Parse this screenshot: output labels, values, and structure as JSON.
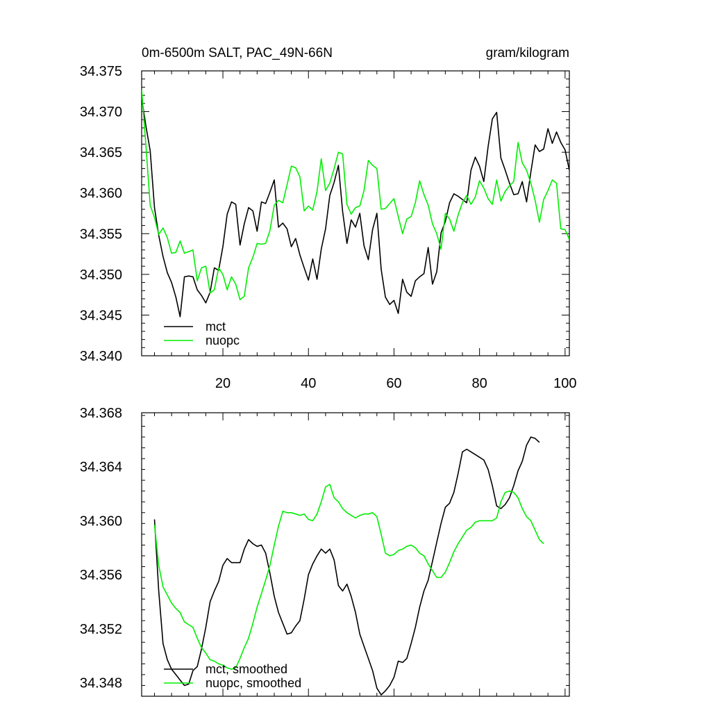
{
  "figure": {
    "title_left": "0m-6500m SALT, PAC_49N-66N",
    "title_right": "gram/kilogram"
  },
  "colors": {
    "mct": "#000000",
    "nuopc": "#00ee00",
    "axis": "#000000"
  },
  "chart_data": [
    {
      "type": "line",
      "panel": "raw",
      "xlim": [
        1,
        101
      ],
      "ylim": [
        34.34,
        34.375
      ],
      "xticks": [
        20,
        40,
        60,
        80,
        100
      ],
      "yticks": [
        34.34,
        34.345,
        34.35,
        34.355,
        34.36,
        34.365,
        34.37,
        34.375
      ],
      "ytick_labels": [
        "34.340",
        "34.345",
        "34.350",
        "34.355",
        "34.360",
        "34.365",
        "34.370",
        "34.375"
      ],
      "xtick_labels": [
        "20",
        "40",
        "60",
        "80",
        "100"
      ],
      "legend": [
        "mct",
        "nuopc"
      ],
      "series": [
        {
          "name": "mct",
          "color": "#000000",
          "x_start": 1,
          "x_step": 1,
          "values": [
            34.3717,
            34.3682,
            34.3652,
            34.3582,
            34.3548,
            34.3522,
            34.3502,
            34.349,
            34.3472,
            34.3448,
            34.3497,
            34.3498,
            34.3497,
            34.3481,
            34.3474,
            34.3465,
            34.3478,
            34.3508,
            34.3505,
            34.3534,
            34.3574,
            34.3589,
            34.3586,
            34.3536,
            34.3562,
            34.3582,
            34.3578,
            34.3553,
            34.3589,
            34.3587,
            34.3601,
            34.3616,
            34.3558,
            34.3563,
            34.3556,
            34.3534,
            34.3544,
            34.3524,
            34.3508,
            34.3493,
            34.3519,
            34.3494,
            34.3531,
            34.3556,
            34.3597,
            34.3613,
            34.3634,
            34.3577,
            34.3538,
            34.3567,
            34.3558,
            34.3575,
            34.3535,
            34.3518,
            34.3555,
            34.3575,
            34.3506,
            34.3472,
            34.3463,
            34.3468,
            34.3452,
            34.3494,
            34.3478,
            34.3473,
            34.3492,
            34.3497,
            34.3501,
            34.3533,
            34.3488,
            34.3503,
            34.3551,
            34.3565,
            34.3588,
            34.3599,
            34.3596,
            34.3592,
            34.3588,
            34.3628,
            34.3644,
            34.3633,
            34.3614,
            34.3657,
            34.3691,
            34.3699,
            34.3643,
            34.3628,
            34.3612,
            34.3598,
            34.3599,
            34.3614,
            34.3589,
            34.3626,
            34.3659,
            34.3651,
            34.3654,
            34.3679,
            34.3661,
            34.3675,
            34.3662,
            34.3653,
            34.3628
          ]
        },
        {
          "name": "nuopc",
          "color": "#00ee00",
          "x_start": 1,
          "x_step": 1,
          "values": [
            34.3727,
            34.3658,
            34.3585,
            34.357,
            34.3549,
            34.3557,
            34.3545,
            34.3526,
            34.3527,
            34.3541,
            34.3526,
            34.3528,
            34.353,
            34.3492,
            34.3508,
            34.351,
            34.3477,
            34.3481,
            34.3508,
            34.35,
            34.3481,
            34.3497,
            34.3488,
            34.3469,
            34.3473,
            34.3508,
            34.3521,
            34.3538,
            34.3537,
            34.3538,
            34.3554,
            34.3585,
            34.3591,
            34.3588,
            34.361,
            34.3633,
            34.3631,
            34.362,
            34.3578,
            34.3584,
            34.3579,
            34.3602,
            34.3642,
            34.3603,
            34.3612,
            34.363,
            34.365,
            34.3648,
            34.3586,
            34.3574,
            34.3582,
            34.3584,
            34.3603,
            34.364,
            34.3634,
            34.363,
            34.358,
            34.3581,
            34.3587,
            34.3593,
            34.3571,
            34.355,
            34.3568,
            34.3571,
            34.3588,
            34.3615,
            34.3598,
            34.3585,
            34.3562,
            34.355,
            34.3531,
            34.3575,
            34.3568,
            34.3553,
            34.3573,
            34.3588,
            34.3597,
            34.3586,
            34.3595,
            34.3615,
            34.3606,
            34.3593,
            34.3586,
            34.3616,
            34.359,
            34.3602,
            34.3609,
            34.3614,
            34.3662,
            34.3637,
            34.3628,
            34.3612,
            34.3591,
            34.3564,
            34.3592,
            34.3603,
            34.3616,
            34.3612,
            34.3556,
            34.3555,
            34.3543
          ]
        }
      ]
    },
    {
      "type": "line",
      "panel": "smoothed",
      "xlim": [
        1,
        101
      ],
      "ylim": [
        34.347,
        34.368
      ],
      "yticks": [
        34.348,
        34.352,
        34.356,
        34.36,
        34.364,
        34.368
      ],
      "ytick_labels": [
        "34.348",
        "34.352",
        "34.356",
        "34.360",
        "34.364",
        "34.368"
      ],
      "xticks": [
        20,
        40,
        60,
        80,
        100
      ],
      "legend": [
        "mct, smoothed",
        "nuopc, smoothed"
      ],
      "series": [
        {
          "name": "mct, smoothed",
          "color": "#000000",
          "x_start": 4,
          "x_step": 1,
          "values": [
            34.3601,
            34.3548,
            34.3509,
            34.3497,
            34.349,
            34.3486,
            34.3482,
            34.3478,
            34.3479,
            34.3489,
            34.3492,
            34.3505,
            34.3521,
            34.354,
            34.3548,
            34.3555,
            34.3567,
            34.3572,
            34.3569,
            34.3569,
            34.3569,
            34.3579,
            34.3586,
            34.3583,
            34.3581,
            34.3582,
            34.3576,
            34.3561,
            34.3544,
            34.3532,
            34.3524,
            34.3516,
            34.3517,
            34.3522,
            34.3526,
            34.3542,
            34.356,
            34.3568,
            34.3574,
            34.3579,
            34.3576,
            34.3579,
            34.3571,
            34.3552,
            34.3548,
            34.3553,
            34.3544,
            34.3532,
            34.3516,
            34.3507,
            34.3498,
            34.3489,
            34.3476,
            34.3471,
            34.3474,
            34.3478,
            34.3484,
            34.3496,
            34.3495,
            34.3498,
            34.3509,
            34.3521,
            34.3536,
            34.3548,
            34.3556,
            34.357,
            34.3584,
            34.3598,
            34.361,
            34.3613,
            34.3621,
            34.3635,
            34.3651,
            34.3653,
            34.3651,
            34.3649,
            34.3647,
            34.3645,
            34.3638,
            34.3626,
            34.3611,
            34.3609,
            34.3612,
            34.3617,
            34.3626,
            34.3637,
            34.3644,
            34.3656,
            34.3662,
            34.3661,
            34.3658
          ]
        },
        {
          "name": "nuopc, smoothed",
          "color": "#00ee00",
          "x_start": 4,
          "x_step": 1,
          "values": [
            34.3597,
            34.3567,
            34.3551,
            34.3545,
            34.3539,
            34.3535,
            34.3532,
            34.3525,
            34.3523,
            34.3521,
            34.3513,
            34.3506,
            34.3502,
            34.3497,
            34.3496,
            34.3494,
            34.3493,
            34.3491,
            34.349,
            34.3491,
            34.3498,
            34.3506,
            34.3513,
            34.3524,
            34.3536,
            34.3546,
            34.3556,
            34.3567,
            34.3582,
            34.3596,
            34.3607,
            34.3606,
            34.3606,
            34.3605,
            34.3604,
            34.3605,
            34.3601,
            34.36,
            34.3605,
            34.3614,
            34.3625,
            34.3627,
            34.3617,
            34.3614,
            34.3609,
            34.3606,
            34.3604,
            34.3602,
            34.3604,
            34.3605,
            34.3605,
            34.3606,
            34.3603,
            34.359,
            34.3576,
            34.3574,
            34.3575,
            34.3578,
            34.3579,
            34.3581,
            34.3582,
            34.358,
            34.3576,
            34.3574,
            34.3568,
            34.3563,
            34.3558,
            34.3558,
            34.3562,
            34.3569,
            34.3577,
            34.3583,
            34.3588,
            34.3593,
            34.3595,
            34.3599,
            34.36,
            34.36,
            34.36,
            34.36,
            34.3602,
            34.3614,
            34.3621,
            34.3622,
            34.3621,
            34.3617,
            34.3609,
            34.3603,
            34.36,
            34.3593,
            34.3586,
            34.3583
          ]
        }
      ]
    }
  ]
}
